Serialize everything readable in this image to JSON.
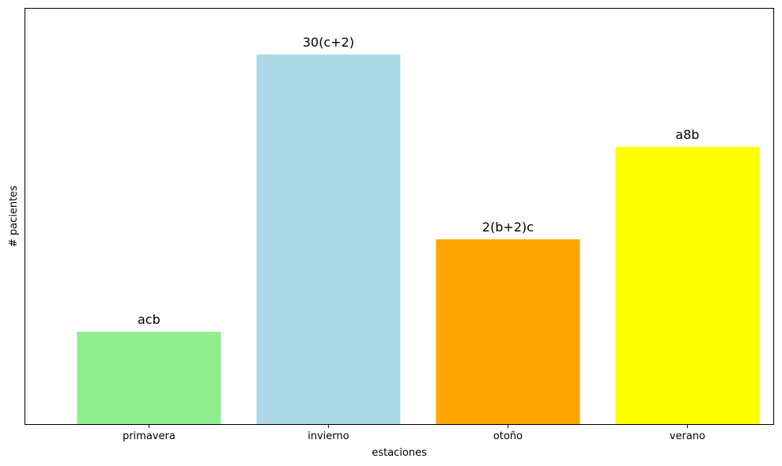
{
  "chart_data": {
    "type": "bar",
    "title": "",
    "xlabel": "estaciones",
    "ylabel": "# pacientes",
    "categories": [
      "primavera",
      "invierno",
      "otoño",
      "verano"
    ],
    "values": [
      1,
      4,
      2,
      3
    ],
    "bar_labels": [
      "acb",
      "30(c+2)",
      "2(b+2)c",
      "a8b"
    ],
    "colors": [
      "#90ee90",
      "#add8e6",
      "#ffa500",
      "#ffff00"
    ],
    "ylim": [
      0,
      4.5
    ],
    "y_ticks_shown": false,
    "grid": false,
    "legend": "none"
  }
}
